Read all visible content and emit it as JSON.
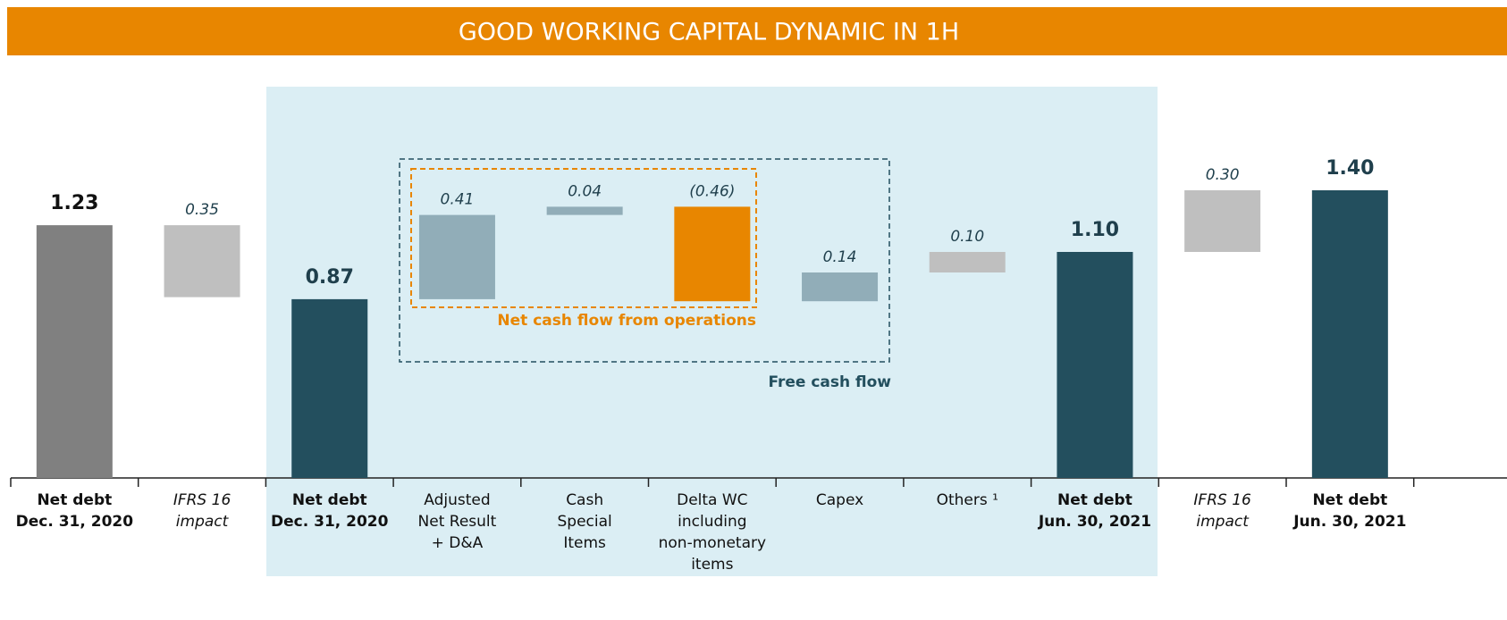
{
  "chart_data": {
    "type": "waterfall",
    "title": "GOOD WORKING CAPITAL DYNAMIC IN 1H",
    "categories": [
      [
        "Net debt",
        "Dec. 31, 2020"
      ],
      [
        "IFRS 16",
        "impact"
      ],
      [
        "Net debt",
        "Dec. 31, 2020"
      ],
      [
        "Adjusted",
        "Net Result",
        "+ D&A"
      ],
      [
        "Cash",
        "Special",
        "Items"
      ],
      [
        "Delta WC",
        "including",
        "non-monetary",
        "items"
      ],
      [
        "Capex"
      ],
      [
        "Others ¹"
      ],
      [
        "Net debt",
        "Jun. 30, 2021"
      ],
      [
        "IFRS 16",
        "impact"
      ],
      [
        "Net debt",
        "Jun. 30, 2021"
      ]
    ],
    "category_style": [
      "bold",
      "italic",
      "bold",
      "normal",
      "normal",
      "normal",
      "normal",
      "normal",
      "bold",
      "italic",
      "bold"
    ],
    "measure": [
      "total",
      "relative",
      "total",
      "relative",
      "relative",
      "relative",
      "relative",
      "relative",
      "total",
      "relative",
      "total"
    ],
    "values": [
      1.23,
      -0.35,
      0.87,
      0.41,
      0.04,
      -0.46,
      0.14,
      0.1,
      1.1,
      0.3,
      1.4
    ],
    "value_labels": [
      "1.23",
      "0.35",
      "0.87",
      "0.41",
      "0.04",
      "(0.46)",
      "0.14",
      "0.10",
      "1.10",
      "0.30",
      "1.40"
    ],
    "colors": [
      "#808080",
      "#bfbfbf",
      "#234f5e",
      "#91adb8",
      "#91adb8",
      "#e88600",
      "#91adb8",
      "#bfbfbf",
      "#234f5e",
      "#bfbfbf",
      "#234f5e"
    ],
    "annotations": [
      "Net cash flow from operations",
      "Free cash flow"
    ],
    "ylim": [
      0,
      1.9
    ]
  }
}
